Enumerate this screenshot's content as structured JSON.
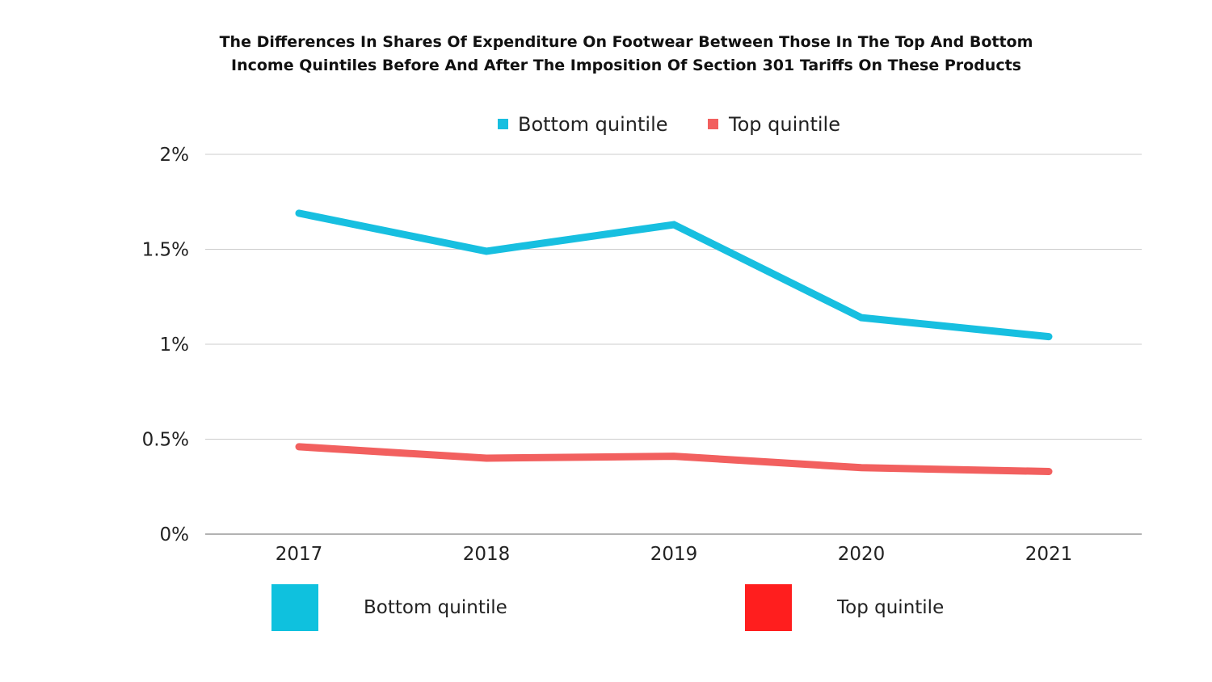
{
  "title_lines": [
    "The Differences In Shares Of Expenditure On Footwear Between Those In The Top And Bottom",
    "Income Quintiles Before And After The Imposition Of Section 301 Tariffs On These Products"
  ],
  "colors": {
    "bottom_line": "#17BFE0",
    "top_line": "#F2605F",
    "bottom_swatch": "#0FC1DE",
    "top_swatch": "#FF1E1E",
    "grid": "#cccccc",
    "axis": "#999999"
  },
  "legend_top": [
    {
      "label": "Bottom quintile",
      "color": "#17BFE0"
    },
    {
      "label": "Top quintile",
      "color": "#F2605F"
    }
  ],
  "legend_bottom": [
    {
      "label": "Bottom quintile",
      "color": "#0FC1DE"
    },
    {
      "label": "Top quintile",
      "color": "#FF1E1E"
    }
  ],
  "chart_data": {
    "type": "line",
    "title": "The Differences In Shares Of Expenditure On Footwear Between Those In The Top And Bottom Income Quintiles Before And After The Imposition Of Section 301 Tariffs On These Products",
    "categories": [
      "2017",
      "2018",
      "2019",
      "2020",
      "2021"
    ],
    "series": [
      {
        "name": "Bottom quintile",
        "values": [
          1.69,
          1.49,
          1.63,
          1.14,
          1.04
        ]
      },
      {
        "name": "Top quintile",
        "values": [
          0.46,
          0.4,
          0.41,
          0.35,
          0.33
        ]
      }
    ],
    "yticks": [
      0,
      0.5,
      1,
      1.5,
      2
    ],
    "ytick_labels": [
      "0%",
      "0.5%",
      "1%",
      "1.5%",
      "2%"
    ],
    "ylim": [
      0,
      2
    ],
    "grid": true,
    "xlabel": "",
    "ylabel": "",
    "legend_position": "top-center"
  }
}
